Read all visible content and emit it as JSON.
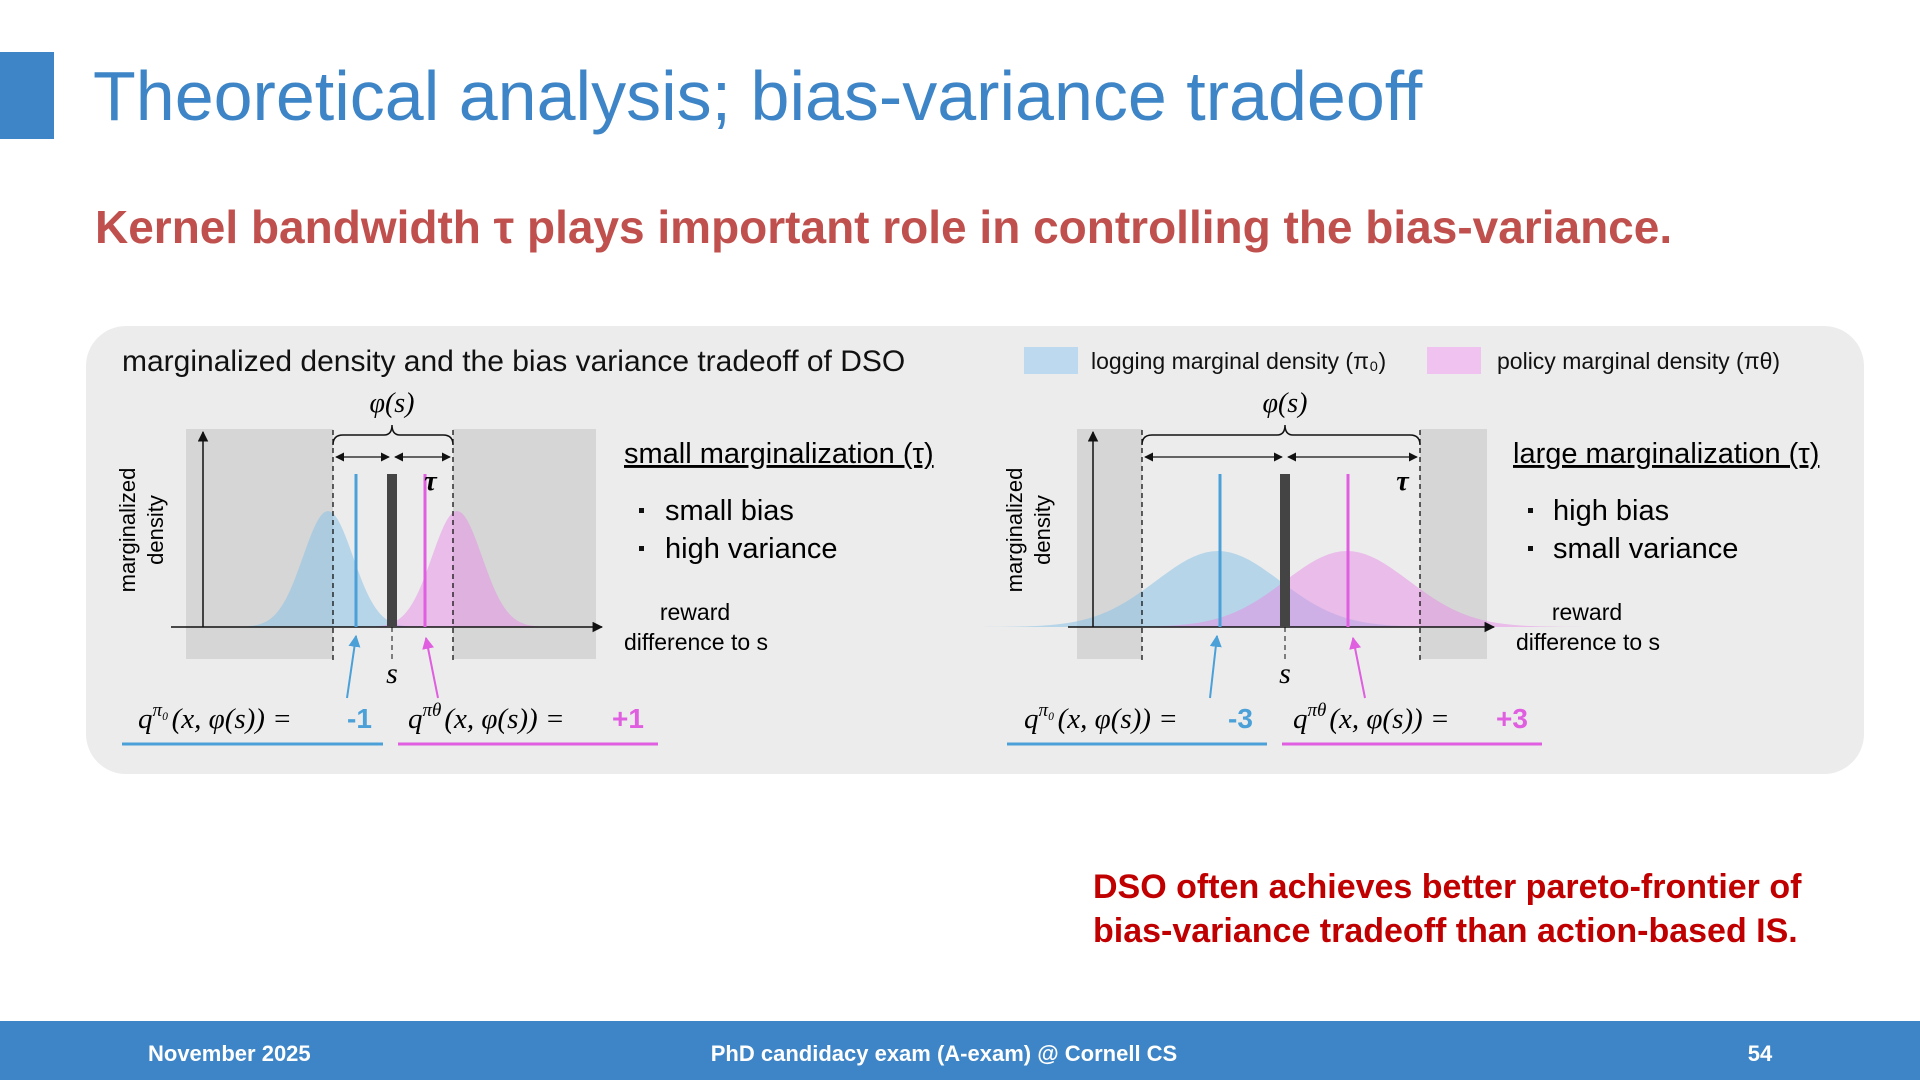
{
  "header": {
    "title": "Theoretical analysis; bias-variance tradeoff"
  },
  "subtitle": "Kernel bandwidth τ plays important role in controlling the bias-variance.",
  "figure": {
    "title": "marginalized density and the bias variance tradeoff of DSO",
    "legend": [
      "logging marginal density (π₀)",
      "policy marginal density (πθ)"
    ],
    "panels": [
      {
        "heading": "small marginalization (τ)",
        "bullets": [
          "small bias",
          "high variance"
        ],
        "y_label": [
          "marginalized",
          "density"
        ],
        "x_label": [
          "reward",
          "difference to s"
        ],
        "phi": "φ(s)",
        "tau": "τ",
        "s": "s",
        "estimates": [
          {
            "symbol": "q",
            "superscript": "π₀",
            "argument": "(x, φ(s)) =",
            "value": "-1"
          },
          {
            "symbol": "q",
            "superscript": "πθ",
            "argument": "(x, φ(s)) =",
            "value": "+1"
          }
        ]
      },
      {
        "heading": "large marginalization (τ)",
        "bullets": [
          "high bias",
          "small variance"
        ],
        "y_label": [
          "marginalized",
          "density"
        ],
        "x_label": [
          "reward",
          "difference to s"
        ],
        "phi": "φ(s)",
        "tau": "τ",
        "s": "s",
        "estimates": [
          {
            "symbol": "q",
            "superscript": "π₀",
            "argument": "(x, φ(s)) =",
            "value": "-3"
          },
          {
            "symbol": "q",
            "superscript": "πθ",
            "argument": "(x, φ(s)) =",
            "value": "+3"
          }
        ]
      }
    ]
  },
  "note": [
    "DSO often achieves better pareto-frontier of",
    "bias-variance tradeoff than action-based IS."
  ],
  "footer": {
    "date": "November 2025",
    "event": "PhD candidacy exam (A-exam) @ Cornell CS",
    "page": "54"
  }
}
